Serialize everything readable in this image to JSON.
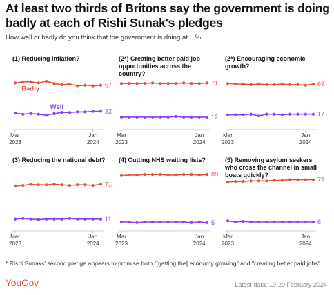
{
  "header": {
    "title": "At least two thirds of Britons say the government is doing badly at each of Rishi Sunak's pledges",
    "subtitle": "How well or badly do you think that the government is doing at... %"
  },
  "footer": {
    "footnote": "* Rishi Sunaks' second pledge appears to promise both \"[getting the] economy growing\" and \"creating better paid jobs\"",
    "brand": "YouGov",
    "latest": "Latest data: 19-20 February 2024"
  },
  "colors": {
    "badly": "#e5503b",
    "well": "#8a3ff2"
  },
  "chart_data": [
    {
      "type": "line",
      "title": "(1) Reducing inflation?",
      "x": [
        "2023-03",
        "2023-04",
        "2023-05",
        "2023-06",
        "2023-07",
        "2023-08",
        "2023-09",
        "2023-10",
        "2023-11",
        "2023-12",
        "2024-01",
        "2024-02"
      ],
      "x_tick_labels": [
        [
          "Mar",
          "2023"
        ],
        [
          "Jan",
          "2024"
        ]
      ],
      "ylim": [
        0,
        100
      ],
      "series": [
        {
          "name": "Badly",
          "values": [
            71,
            73,
            73,
            71,
            74,
            70,
            68,
            69,
            66,
            67,
            66,
            67
          ],
          "end_label": "67"
        },
        {
          "name": "Well",
          "values": [
            19,
            17,
            18,
            17,
            15,
            18,
            20,
            20,
            21,
            21,
            22,
            22
          ],
          "end_label": "22"
        }
      ]
    },
    {
      "type": "line",
      "title": "(2*) Creating better paid job opportunities across the country?",
      "x": [
        "2023-03",
        "2023-04",
        "2023-05",
        "2023-06",
        "2023-07",
        "2023-08",
        "2023-09",
        "2023-10",
        "2023-11",
        "2023-12",
        "2024-01",
        "2024-02"
      ],
      "x_tick_labels": [
        [
          "Mar",
          "2023"
        ],
        [
          "Jan",
          "2024"
        ]
      ],
      "ylim": [
        0,
        100
      ],
      "series": [
        {
          "name": "Badly",
          "values": [
            70,
            70,
            70,
            70,
            71,
            70,
            70,
            70,
            71,
            70,
            70,
            71
          ],
          "end_label": "71"
        },
        {
          "name": "Well",
          "values": [
            12,
            12,
            12,
            12,
            12,
            12,
            12,
            13,
            12,
            12,
            12,
            12
          ],
          "end_label": "12"
        }
      ]
    },
    {
      "type": "line",
      "title": "(2*) Encouraging economic growth?",
      "x": [
        "2023-03",
        "2023-04",
        "2023-05",
        "2023-06",
        "2023-07",
        "2023-08",
        "2023-09",
        "2023-10",
        "2023-11",
        "2023-12",
        "2024-01",
        "2024-02"
      ],
      "x_tick_labels": [
        [
          "Mar",
          "2023"
        ],
        [
          "Jan",
          "2024"
        ]
      ],
      "ylim": [
        0,
        100
      ],
      "series": [
        {
          "name": "Badly",
          "values": [
            70,
            69,
            69,
            68,
            69,
            68,
            68,
            69,
            68,
            68,
            67,
            69
          ],
          "end_label": "69"
        },
        {
          "name": "Well",
          "values": [
            16,
            16,
            16,
            17,
            14,
            17,
            17,
            16,
            17,
            17,
            17,
            17
          ],
          "end_label": "17"
        }
      ]
    },
    {
      "type": "line",
      "title": "(3) Reducing the national debt?",
      "x": [
        "2023-03",
        "2023-04",
        "2023-05",
        "2023-06",
        "2023-07",
        "2023-08",
        "2023-09",
        "2023-10",
        "2023-11",
        "2023-12",
        "2024-01",
        "2024-02"
      ],
      "x_tick_labels": [
        [
          "Mar",
          "2023"
        ],
        [
          "Jan",
          "2024"
        ]
      ],
      "ylim": [
        0,
        100
      ],
      "series": [
        {
          "name": "Badly",
          "values": [
            68,
            69,
            71,
            70,
            70,
            71,
            70,
            69,
            70,
            70,
            69,
            71
          ],
          "end_label": "71"
        },
        {
          "name": "Well",
          "values": [
            11,
            12,
            11,
            10,
            11,
            11,
            11,
            12,
            11,
            11,
            11,
            11
          ],
          "end_label": "11"
        }
      ]
    },
    {
      "type": "line",
      "title": "(4) Cutting NHS waiting lists?",
      "x": [
        "2023-03",
        "2023-04",
        "2023-05",
        "2023-06",
        "2023-07",
        "2023-08",
        "2023-09",
        "2023-10",
        "2023-11",
        "2023-12",
        "2024-01",
        "2024-02"
      ],
      "x_tick_labels": [
        [
          "Mar",
          "2023"
        ],
        [
          "Jan",
          "2024"
        ]
      ],
      "ylim": [
        0,
        100
      ],
      "series": [
        {
          "name": "Badly",
          "values": [
            86,
            87,
            87,
            88,
            88,
            88,
            87,
            87,
            88,
            88,
            87,
            88
          ],
          "end_label": "88"
        },
        {
          "name": "Well",
          "values": [
            6,
            6,
            5,
            6,
            6,
            6,
            6,
            6,
            6,
            5,
            6,
            5
          ],
          "end_label": "5"
        }
      ]
    },
    {
      "type": "line",
      "title": "(5) Removing asylum seekers who cross the channel in small boats quickly?",
      "x": [
        "2023-03",
        "2023-04",
        "2023-05",
        "2023-06",
        "2023-07",
        "2023-08",
        "2023-09",
        "2023-10",
        "2023-11",
        "2023-12",
        "2024-01",
        "2024-02"
      ],
      "x_tick_labels": [
        [
          "Mar",
          "2023"
        ],
        [
          "Jan",
          "2024"
        ]
      ],
      "ylim": [
        0,
        100
      ],
      "series": [
        {
          "name": "Badly",
          "values": [
            75,
            76,
            76,
            77,
            77,
            77,
            78,
            78,
            79,
            79,
            79,
            79
          ],
          "end_label": "79"
        },
        {
          "name": "Well",
          "values": [
            8,
            6,
            7,
            6,
            6,
            6,
            6,
            6,
            6,
            6,
            6,
            6
          ],
          "end_label": "6"
        }
      ]
    }
  ]
}
